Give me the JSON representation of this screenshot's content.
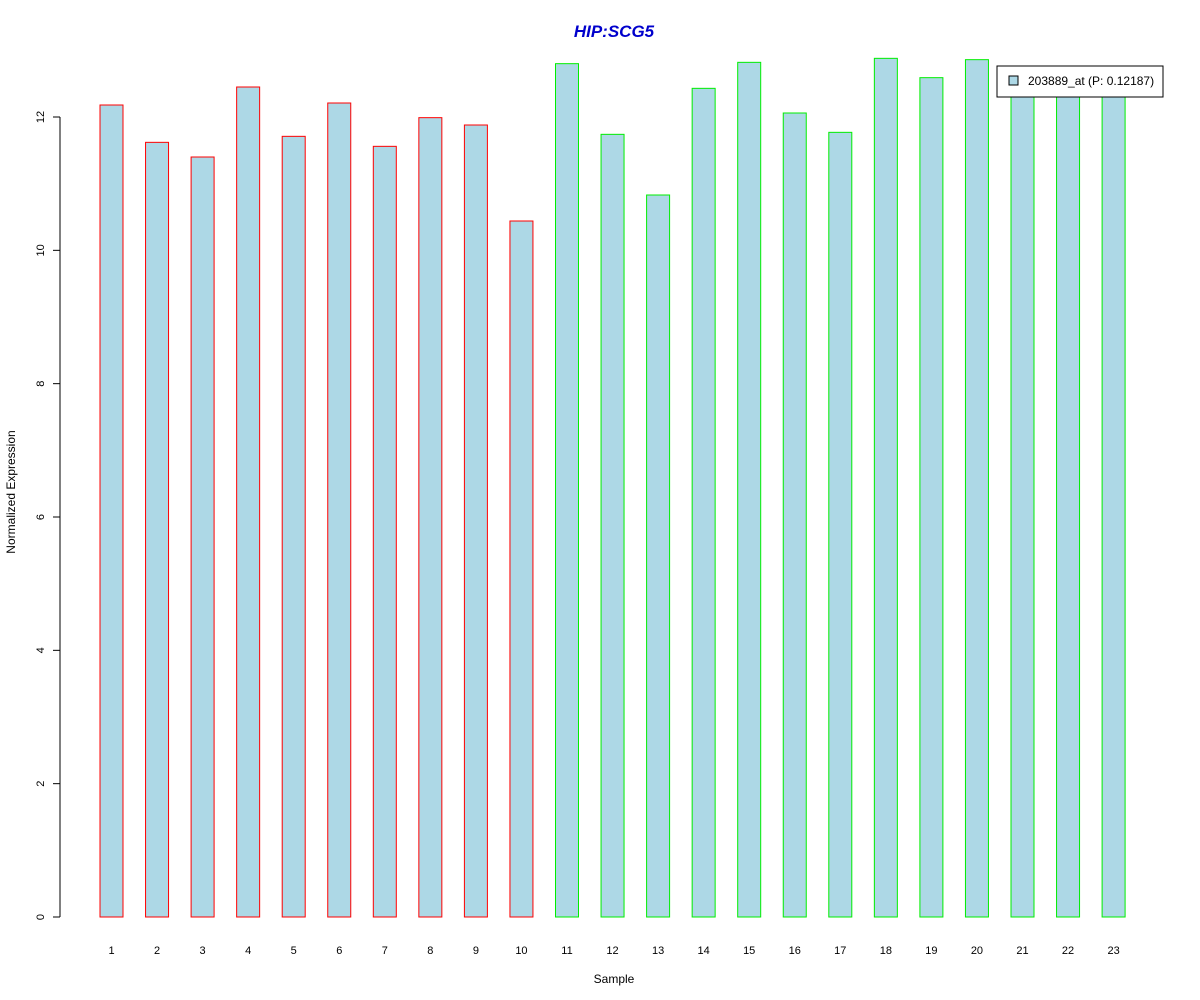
{
  "chart_data": {
    "type": "bar",
    "title": "HIP:SCG5",
    "xlabel": "Sample",
    "ylabel": "Normalized Expression",
    "categories": [
      "1",
      "2",
      "3",
      "4",
      "5",
      "6",
      "7",
      "8",
      "9",
      "10",
      "11",
      "12",
      "13",
      "14",
      "15",
      "16",
      "17",
      "18",
      "19",
      "20",
      "21",
      "22",
      "23"
    ],
    "series": [
      {
        "name": "203889_at (P: 0.12187)",
        "values": [
          12.18,
          11.62,
          11.4,
          12.45,
          11.71,
          12.21,
          11.56,
          11.99,
          11.88,
          10.44,
          12.8,
          11.74,
          10.83,
          12.43,
          12.82,
          12.06,
          11.77,
          12.88,
          12.59,
          12.86,
          12.33,
          12.33,
          12.33
        ]
      }
    ],
    "group_border_colors": [
      "#ff0000",
      "#ff0000",
      "#ff0000",
      "#ff0000",
      "#ff0000",
      "#ff0000",
      "#ff0000",
      "#ff0000",
      "#ff0000",
      "#ff0000",
      "#00ee00",
      "#00ee00",
      "#00ee00",
      "#00ee00",
      "#00ee00",
      "#00ee00",
      "#00ee00",
      "#00ee00",
      "#00ee00",
      "#00ee00",
      "#00ee00",
      "#00ee00",
      "#00ee00"
    ],
    "ylim": [
      0,
      12
    ],
    "yticks": [
      0,
      2,
      4,
      6,
      8,
      10,
      12
    ],
    "legend_position": "top-right",
    "grid": false,
    "colors": {
      "bar_fill": "#add8e6",
      "title": "#0000cc"
    }
  }
}
